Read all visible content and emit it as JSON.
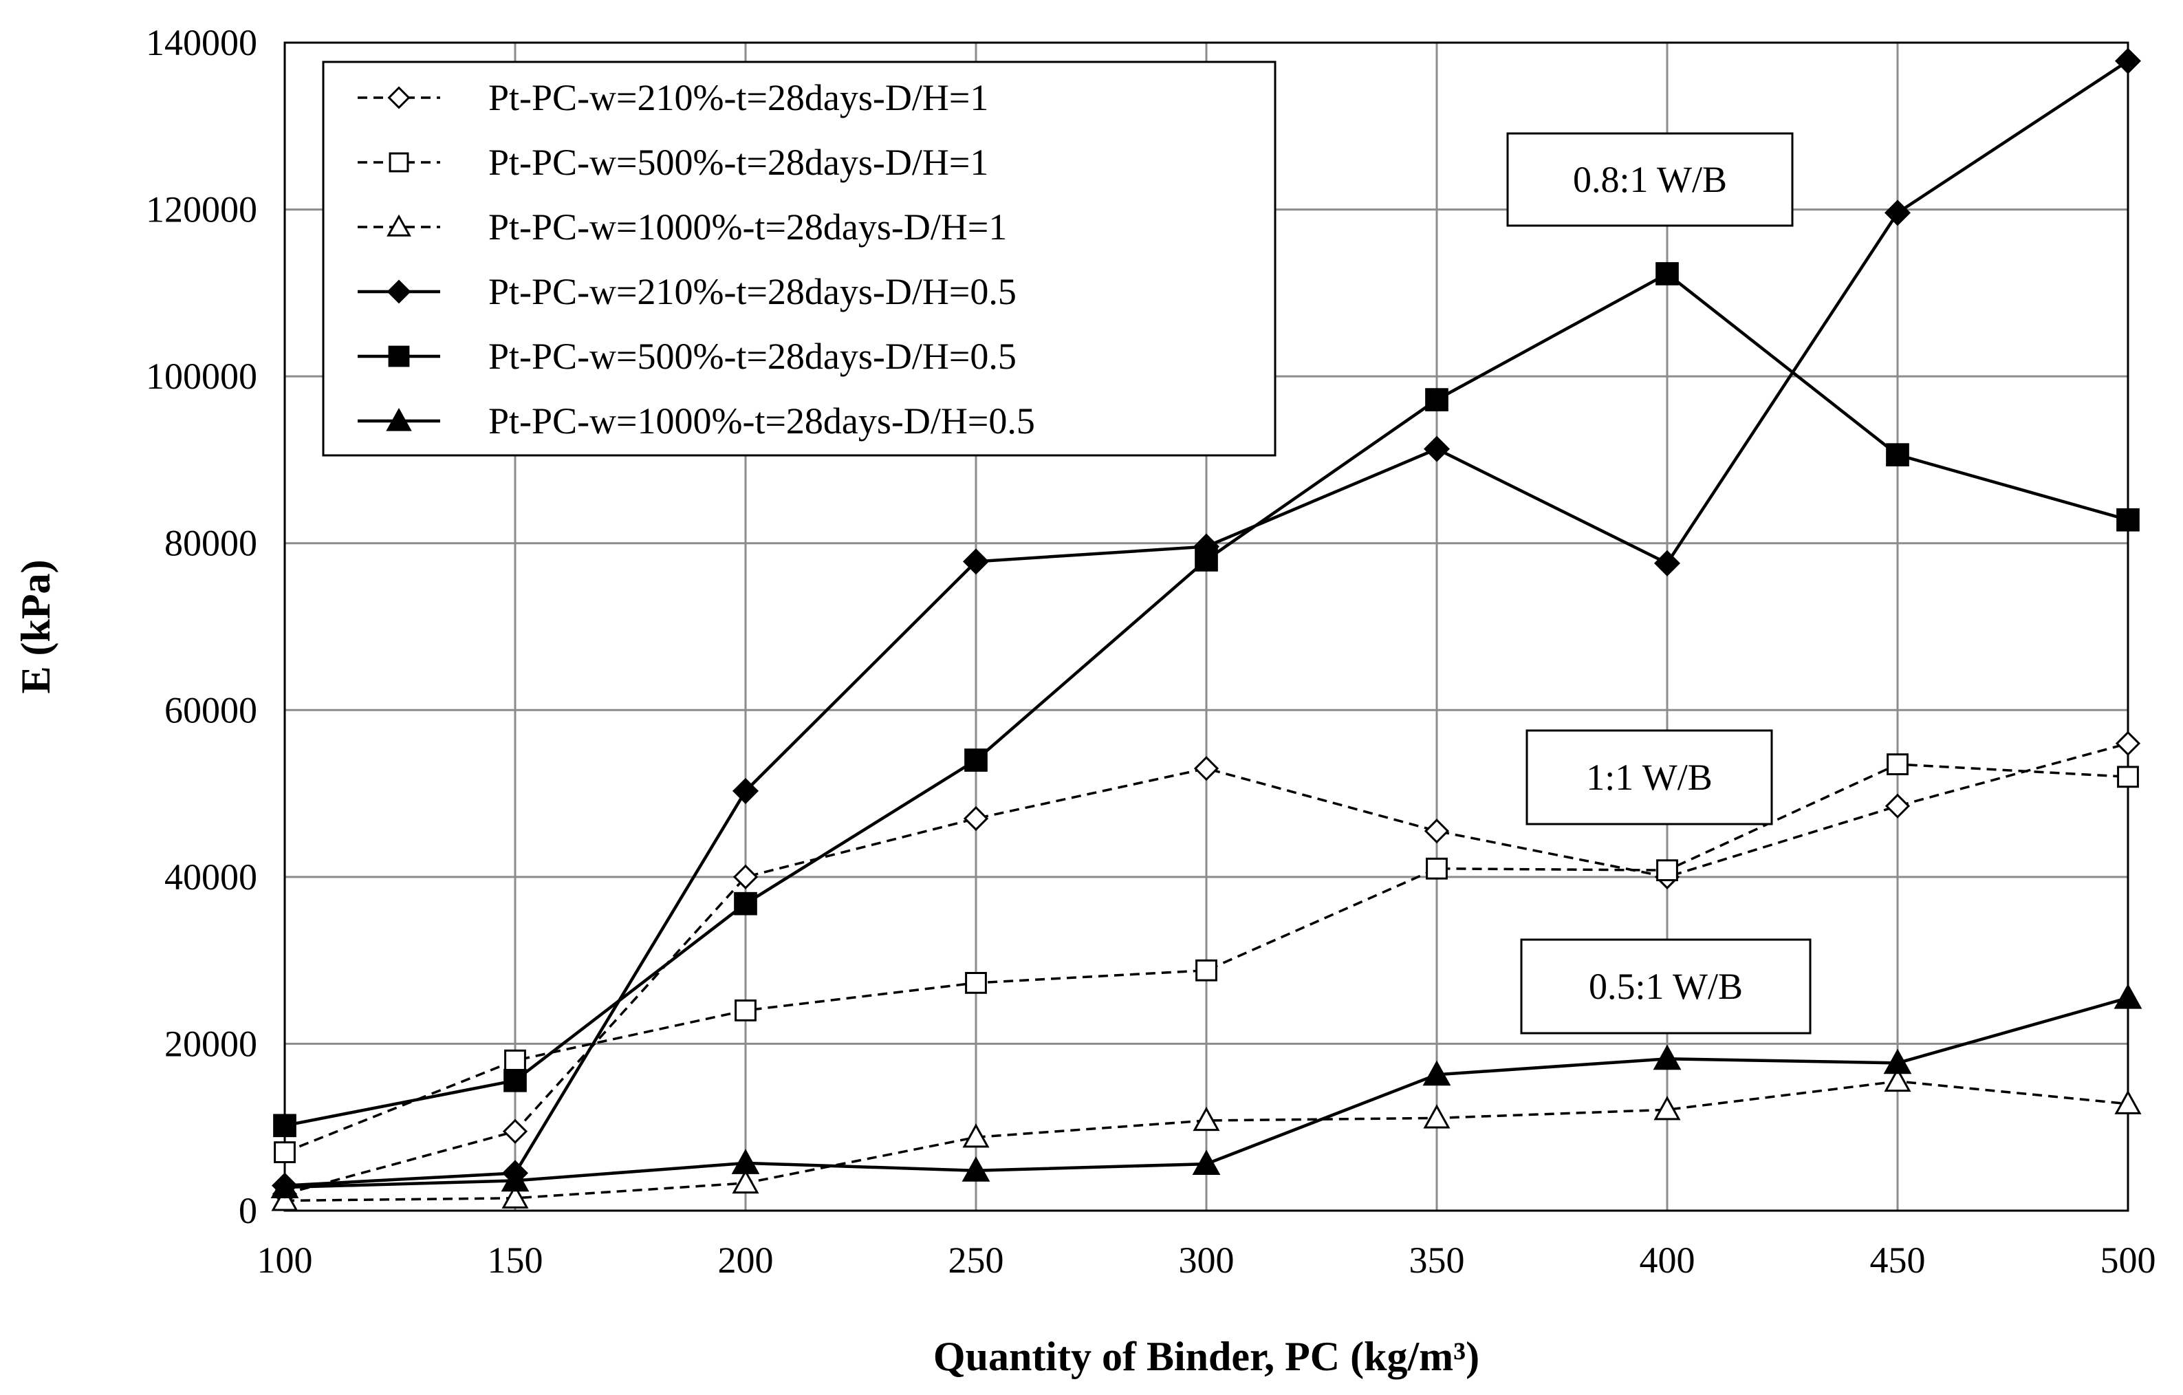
{
  "chart_data": {
    "type": "line",
    "xlabel": "Quantity of Binder, PC (kg/m³)",
    "ylabel": "E (kPa)",
    "xlim": [
      100,
      500
    ],
    "ylim": [
      0,
      140000
    ],
    "x_ticks": [
      100,
      150,
      200,
      250,
      300,
      350,
      400,
      450,
      500
    ],
    "y_ticks": [
      0,
      20000,
      40000,
      60000,
      80000,
      100000,
      120000,
      140000
    ],
    "grid": true,
    "legend_position": "top-left",
    "x": [
      100,
      150,
      200,
      250,
      300,
      350,
      400,
      450,
      500
    ],
    "series": [
      {
        "name": "Pt-PC-w=210%-t=28days-D/H=1",
        "line": "dashed",
        "marker": "diamond",
        "filled": false,
        "values": [
          2000,
          9500,
          40000,
          47000,
          53000,
          45500,
          40000,
          48500,
          56000
        ]
      },
      {
        "name": "Pt-PC-w=500%-t=28days-D/H=1",
        "line": "dashed",
        "marker": "square",
        "filled": false,
        "values": [
          7000,
          18000,
          24000,
          27300,
          28800,
          41000,
          40800,
          53500,
          52000
        ]
      },
      {
        "name": "Pt-PC-w=1000%-t=28days-D/H=1",
        "line": "dashed",
        "marker": "triangle",
        "filled": false,
        "values": [
          1200,
          1500,
          3300,
          8800,
          10800,
          11100,
          12100,
          15500,
          12800
        ]
      },
      {
        "name": "Pt-PC-w=210%-t=28days-D/H=0.5",
        "line": "solid",
        "marker": "diamond",
        "filled": true,
        "values": [
          3000,
          4500,
          50300,
          77800,
          79600,
          91300,
          77600,
          119600,
          137800
        ]
      },
      {
        "name": "Pt-PC-w=500%-t=28days-D/H=0.5",
        "line": "solid",
        "marker": "square",
        "filled": true,
        "values": [
          10200,
          15600,
          36800,
          54000,
          78000,
          97200,
          112300,
          90600,
          82800
        ]
      },
      {
        "name": "Pt-PC-w=1000%-t=28days-D/H=0.5",
        "line": "solid",
        "marker": "triangle",
        "filled": true,
        "values": [
          2800,
          3600,
          5700,
          4800,
          5600,
          16300,
          18200,
          17700,
          25500
        ]
      }
    ],
    "annotations": [
      {
        "text": "0.8:1 W/B"
      },
      {
        "text": "1:1 W/B"
      },
      {
        "text": "0.5:1 W/B"
      }
    ]
  }
}
